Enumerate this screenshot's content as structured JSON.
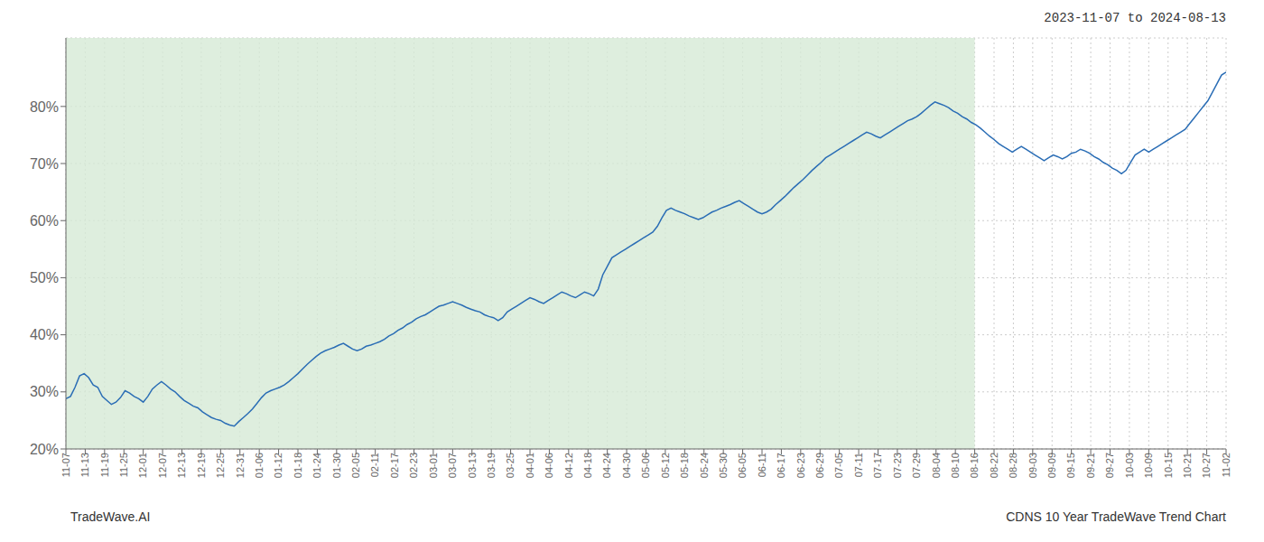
{
  "chart_data": {
    "type": "line",
    "title": "2023-11-07 to 2024-08-13",
    "annotations": [
      "TradeWave.AI",
      "CDNS 10 Year TradeWave Trend Chart"
    ],
    "color": "#2a6db5",
    "grid": true,
    "ylim": [
      20,
      92
    ],
    "yticks": [
      {
        "value": 20,
        "label": "20%"
      },
      {
        "value": 30,
        "label": "30%"
      },
      {
        "value": 40,
        "label": "40%"
      },
      {
        "value": 50,
        "label": "50%"
      },
      {
        "value": 60,
        "label": "60%"
      },
      {
        "value": 70,
        "label": "70%"
      },
      {
        "value": 80,
        "label": "80%"
      }
    ],
    "xlim": [
      0,
      255
    ],
    "xticks": [
      {
        "value": 0,
        "label": "11-07"
      },
      {
        "value": 4.25,
        "label": "11-13"
      },
      {
        "value": 8.5,
        "label": "11-19"
      },
      {
        "value": 12.75,
        "label": "11-25"
      },
      {
        "value": 17,
        "label": "12-01"
      },
      {
        "value": 21.25,
        "label": "12-07"
      },
      {
        "value": 25.5,
        "label": "12-13"
      },
      {
        "value": 29.75,
        "label": "12-19"
      },
      {
        "value": 34,
        "label": "12-25"
      },
      {
        "value": 38.25,
        "label": "12-31"
      },
      {
        "value": 42.5,
        "label": "01-06"
      },
      {
        "value": 46.75,
        "label": "01-12"
      },
      {
        "value": 51,
        "label": "01-18"
      },
      {
        "value": 55.25,
        "label": "01-24"
      },
      {
        "value": 59.5,
        "label": "01-30"
      },
      {
        "value": 63.75,
        "label": "02-05"
      },
      {
        "value": 68,
        "label": "02-11"
      },
      {
        "value": 72.25,
        "label": "02-17"
      },
      {
        "value": 76.5,
        "label": "02-23"
      },
      {
        "value": 80.75,
        "label": "03-01"
      },
      {
        "value": 85,
        "label": "03-07"
      },
      {
        "value": 89.25,
        "label": "03-13"
      },
      {
        "value": 93.5,
        "label": "03-19"
      },
      {
        "value": 97.75,
        "label": "03-25"
      },
      {
        "value": 102,
        "label": "04-01"
      },
      {
        "value": 106.25,
        "label": "04-06"
      },
      {
        "value": 110.5,
        "label": "04-12"
      },
      {
        "value": 114.75,
        "label": "04-18"
      },
      {
        "value": 119,
        "label": "04-24"
      },
      {
        "value": 123.25,
        "label": "04-30"
      },
      {
        "value": 127.5,
        "label": "05-06"
      },
      {
        "value": 131.75,
        "label": "05-12"
      },
      {
        "value": 136,
        "label": "05-18"
      },
      {
        "value": 140.25,
        "label": "05-24"
      },
      {
        "value": 144.5,
        "label": "05-30"
      },
      {
        "value": 148.75,
        "label": "06-05"
      },
      {
        "value": 153,
        "label": "06-11"
      },
      {
        "value": 157.25,
        "label": "06-17"
      },
      {
        "value": 161.5,
        "label": "06-23"
      },
      {
        "value": 165.75,
        "label": "06-29"
      },
      {
        "value": 170,
        "label": "07-05"
      },
      {
        "value": 174.25,
        "label": "07-11"
      },
      {
        "value": 178.5,
        "label": "07-17"
      },
      {
        "value": 182.75,
        "label": "07-23"
      },
      {
        "value": 187,
        "label": "07-29"
      },
      {
        "value": 191.25,
        "label": "08-04"
      },
      {
        "value": 195.5,
        "label": "08-10"
      },
      {
        "value": 199.75,
        "label": "08-16"
      },
      {
        "value": 204,
        "label": "08-22"
      },
      {
        "value": 208.25,
        "label": "08-28"
      },
      {
        "value": 212.5,
        "label": "09-03"
      },
      {
        "value": 216.75,
        "label": "09-09"
      },
      {
        "value": 221,
        "label": "09-15"
      },
      {
        "value": 225.25,
        "label": "09-21"
      },
      {
        "value": 229.5,
        "label": "09-27"
      },
      {
        "value": 233.75,
        "label": "10-03"
      },
      {
        "value": 238,
        "label": "10-09"
      },
      {
        "value": 242.25,
        "label": "10-15"
      },
      {
        "value": 246.5,
        "label": "10-21"
      },
      {
        "value": 250.75,
        "label": "10-27"
      },
      {
        "value": 255,
        "label": "11-02"
      }
    ],
    "highlight": {
      "from": "11-07",
      "to": "08-16",
      "color": "#d6ead6"
    },
    "values": [
      28.8,
      29.2,
      30.8,
      32.8,
      33.2,
      32.5,
      31.2,
      30.8,
      29.2,
      28.5,
      27.8,
      28.2,
      29.0,
      30.2,
      29.8,
      29.2,
      28.8,
      28.2,
      29.2,
      30.5,
      31.2,
      31.8,
      31.2,
      30.5,
      30.0,
      29.2,
      28.5,
      28.0,
      27.5,
      27.2,
      26.5,
      26.0,
      25.5,
      25.2,
      25.0,
      24.5,
      24.2,
      24.0,
      24.8,
      25.5,
      26.2,
      27.0,
      28.0,
      29.0,
      29.8,
      30.2,
      30.5,
      30.8,
      31.2,
      31.8,
      32.5,
      33.2,
      34.0,
      34.8,
      35.5,
      36.2,
      36.8,
      37.2,
      37.5,
      37.8,
      38.2,
      38.5,
      38.0,
      37.5,
      37.2,
      37.5,
      38.0,
      38.2,
      38.5,
      38.8,
      39.2,
      39.8,
      40.2,
      40.8,
      41.2,
      41.8,
      42.2,
      42.8,
      43.2,
      43.5,
      44.0,
      44.5,
      45.0,
      45.2,
      45.5,
      45.8,
      45.5,
      45.2,
      44.8,
      44.5,
      44.2,
      44.0,
      43.5,
      43.2,
      43.0,
      42.5,
      43.0,
      44.0,
      44.5,
      45.0,
      45.5,
      46.0,
      46.5,
      46.2,
      45.8,
      45.5,
      46.0,
      46.5,
      47.0,
      47.5,
      47.2,
      46.8,
      46.5,
      47.0,
      47.5,
      47.2,
      46.8,
      48.0,
      50.5,
      52.0,
      53.5,
      54.0,
      54.5,
      55.0,
      55.5,
      56.0,
      56.5,
      57.0,
      57.5,
      58.0,
      59.0,
      60.5,
      61.8,
      62.2,
      61.8,
      61.5,
      61.2,
      60.8,
      60.5,
      60.2,
      60.5,
      61.0,
      61.5,
      61.8,
      62.2,
      62.5,
      62.8,
      63.2,
      63.5,
      63.0,
      62.5,
      62.0,
      61.5,
      61.2,
      61.5,
      62.0,
      62.8,
      63.5,
      64.2,
      65.0,
      65.8,
      66.5,
      67.2,
      68.0,
      68.8,
      69.5,
      70.2,
      71.0,
      71.5,
      72.0,
      72.5,
      73.0,
      73.5,
      74.0,
      74.5,
      75.0,
      75.5,
      75.2,
      74.8,
      74.5,
      75.0,
      75.5,
      76.0,
      76.5,
      77.0,
      77.5,
      77.8,
      78.2,
      78.8,
      79.5,
      80.2,
      80.8,
      80.5,
      80.2,
      79.8,
      79.2,
      78.8,
      78.2,
      77.8,
      77.2,
      76.8,
      76.2,
      75.5,
      74.8,
      74.2,
      73.5,
      73.0,
      72.5,
      72.0,
      72.5,
      73.0,
      72.5,
      72.0,
      71.5,
      71.0,
      70.5,
      71.0,
      71.5,
      71.2,
      70.8,
      71.2,
      71.8,
      72.0,
      72.5,
      72.2,
      71.8,
      71.2,
      70.8,
      70.2,
      69.8,
      69.2,
      68.8,
      68.2,
      68.8,
      70.2,
      71.5,
      72.0,
      72.5,
      72.0,
      72.5,
      73.0,
      73.5,
      74.0,
      74.5,
      75.0,
      75.5,
      76.0,
      77.0,
      78.0,
      79.0,
      80.0,
      81.0,
      82.5,
      84.0,
      85.5,
      86.0
    ]
  }
}
